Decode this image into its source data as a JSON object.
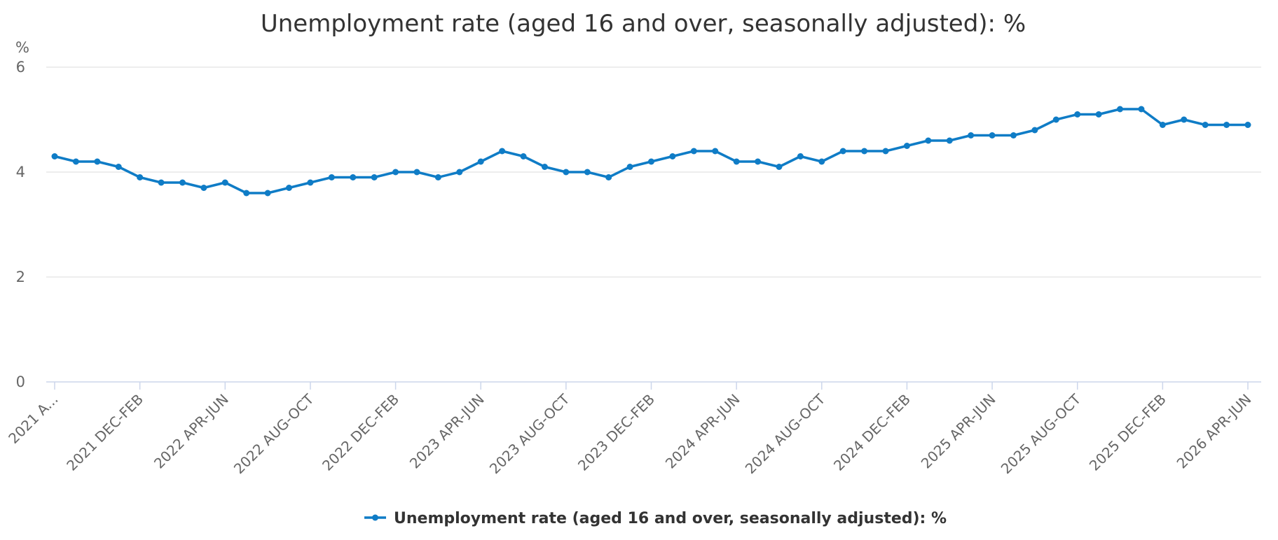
{
  "chart_data": {
    "type": "line",
    "title": "Unemployment rate (aged 16 and over, seasonally adjusted): %",
    "ylabel": "%",
    "xlabel": "",
    "ylim": [
      0,
      6
    ],
    "yticks": [
      0,
      2,
      4,
      6
    ],
    "grid": true,
    "legend_position": "bottom",
    "line_color": "#0f7cc6",
    "x_tick_labels": [
      "2021 A...",
      "2021 DEC-FEB",
      "2022 APR-JUN",
      "2022 AUG-OCT",
      "2022 DEC-FEB",
      "2023 APR-JUN",
      "2023 AUG-OCT",
      "2023 DEC-FEB",
      "2024 APR-JUN",
      "2024 AUG-OCT",
      "2024 DEC-FEB",
      "2025 APR-JUN",
      "2025 AUG-OCT",
      "2025 DEC-FEB",
      "2026 APR-JUN"
    ],
    "series": [
      {
        "name": "Unemployment rate (aged 16 and over, seasonally adjusted): %",
        "values": [
          4.3,
          4.2,
          4.2,
          4.1,
          3.9,
          3.8,
          3.8,
          3.7,
          3.8,
          3.6,
          3.6,
          3.7,
          3.8,
          3.9,
          3.9,
          3.9,
          4.0,
          4.0,
          3.9,
          4.0,
          4.2,
          4.4,
          4.3,
          4.1,
          4.0,
          4.0,
          3.9,
          4.1,
          4.2,
          4.3,
          4.4,
          4.4,
          4.2,
          4.2,
          4.1,
          4.3,
          4.2,
          4.4,
          4.4,
          4.4,
          4.5,
          4.6,
          4.6,
          4.7,
          4.7,
          4.7,
          4.8,
          5.0,
          5.1,
          5.1,
          5.2,
          5.2,
          4.9,
          5.0,
          4.9,
          4.9,
          4.9
        ]
      }
    ]
  }
}
